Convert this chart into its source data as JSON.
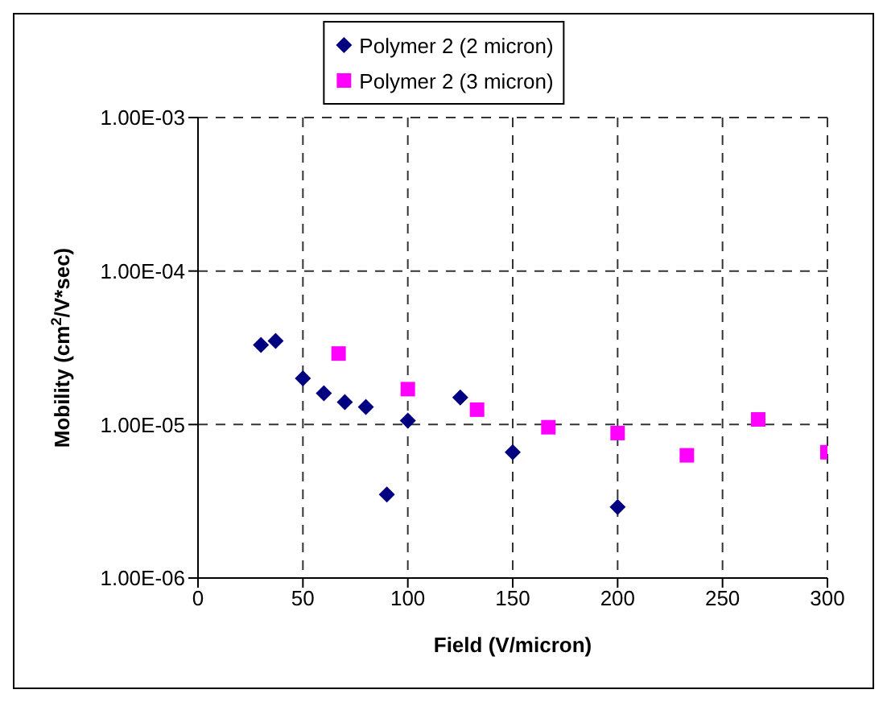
{
  "chart_data": {
    "type": "scatter",
    "xlabel": "Field (V/micron)",
    "ylabel": "Mobility (cm$^{2}$/V*sec)",
    "log": "y",
    "grid": true,
    "legend": "top",
    "xlim": [
      0,
      300
    ],
    "xticks": [
      0,
      50,
      100,
      150,
      200,
      250,
      300
    ],
    "ylim": [
      1e-06,
      0.001
    ],
    "yticks": [
      {
        "value": 1e-06,
        "label": "1.00E-06"
      },
      {
        "value": 1e-05,
        "label": "1.00E-05"
      },
      {
        "value": 0.0001,
        "label": "1.00E-04"
      },
      {
        "value": 0.001,
        "label": "1.00E-03"
      }
    ],
    "series": [
      {
        "name": "Polymer 2 (2 micron)",
        "color": "#000080",
        "marker": "diamond",
        "x": [
          30,
          37,
          50,
          60,
          70,
          80,
          90,
          100,
          125,
          150,
          200
        ],
        "values": [
          3.3e-05,
          3.5e-05,
          2e-05,
          1.6e-05,
          1.4e-05,
          1.3e-05,
          3.5e-06,
          1.06e-05,
          1.5e-05,
          6.6e-06,
          2.9e-06
        ]
      },
      {
        "name": "Polymer 2 (3 micron)",
        "color": "#ff00ff",
        "marker": "square",
        "x": [
          67,
          100,
          133,
          167,
          200,
          233,
          267,
          300
        ],
        "values": [
          2.9e-05,
          1.7e-05,
          1.25e-05,
          9.6e-06,
          8.8e-06,
          6.3e-06,
          1.08e-05,
          6.6e-06
        ]
      }
    ]
  }
}
